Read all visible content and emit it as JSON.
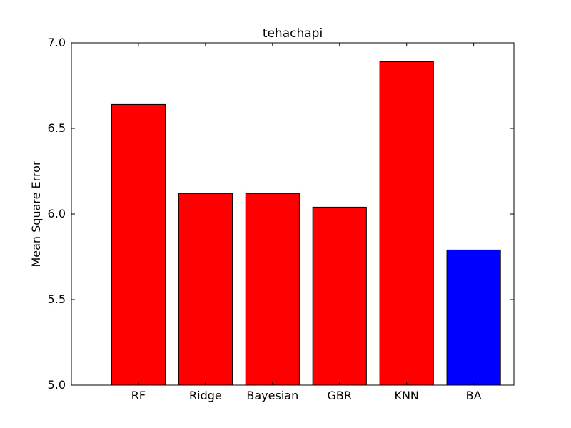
{
  "chart_data": {
    "type": "bar",
    "title": "tehachapi",
    "xlabel": "",
    "ylabel": "Mean Square Error",
    "categories": [
      "RF",
      "Ridge",
      "Bayesian",
      "GBR",
      "KNN",
      "BA"
    ],
    "values": [
      6.64,
      6.12,
      6.12,
      6.04,
      6.89,
      5.79
    ],
    "colors": [
      "#ff0000",
      "#ff0000",
      "#ff0000",
      "#ff0000",
      "#ff0000",
      "#0000ff"
    ],
    "ylim": [
      5.0,
      7.0
    ],
    "yticks": [
      "5.0",
      "5.5",
      "6.0",
      "6.5",
      "7.0"
    ],
    "grid": false,
    "legend": "none"
  }
}
